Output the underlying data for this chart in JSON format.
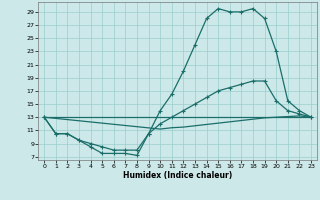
{
  "title": "",
  "xlabel": "Humidex (Indice chaleur)",
  "xlim": [
    -0.5,
    23.5
  ],
  "ylim": [
    6.5,
    30.5
  ],
  "yticks": [
    7,
    9,
    11,
    13,
    15,
    17,
    19,
    21,
    23,
    25,
    27,
    29
  ],
  "xticks": [
    0,
    1,
    2,
    3,
    4,
    5,
    6,
    7,
    8,
    9,
    10,
    11,
    12,
    13,
    14,
    15,
    16,
    17,
    18,
    19,
    20,
    21,
    22,
    23
  ],
  "background_color": "#cce8e8",
  "grid_color": "#9bcece",
  "line_color": "#1a6e6a",
  "line1_x": [
    0,
    1,
    2,
    3,
    4,
    5,
    6,
    7,
    8,
    9,
    10,
    11,
    12,
    13,
    14,
    15,
    16,
    17,
    18,
    19,
    20,
    21,
    22,
    23
  ],
  "line1_y": [
    13,
    10.5,
    10.5,
    9.5,
    8.5,
    7.5,
    7.5,
    7.5,
    7.2,
    10.5,
    14,
    16.5,
    20,
    24,
    28,
    29.5,
    29,
    29,
    29.5,
    28,
    23,
    15.5,
    14,
    13
  ],
  "line2_x": [
    0,
    1,
    2,
    3,
    4,
    5,
    6,
    7,
    8,
    9,
    10,
    11,
    12,
    13,
    14,
    15,
    16,
    17,
    18,
    19,
    20,
    21,
    22,
    23
  ],
  "line2_y": [
    13,
    10.5,
    10.5,
    9.5,
    9.0,
    8.5,
    8.0,
    8.0,
    8.0,
    10.5,
    12,
    13,
    14,
    15,
    16,
    17,
    17.5,
    18,
    18.5,
    18.5,
    15.5,
    14,
    13.5,
    13
  ],
  "line3_x": [
    0,
    23
  ],
  "line3_y": [
    13,
    13
  ],
  "line4_x": [
    0,
    10,
    11,
    12,
    13,
    14,
    15,
    16,
    17,
    18,
    19,
    20,
    21,
    22,
    23
  ],
  "line4_y": [
    13,
    11.2,
    11.4,
    11.5,
    11.7,
    11.9,
    12.1,
    12.3,
    12.5,
    12.7,
    12.9,
    13.0,
    13.1,
    13.2,
    13
  ]
}
